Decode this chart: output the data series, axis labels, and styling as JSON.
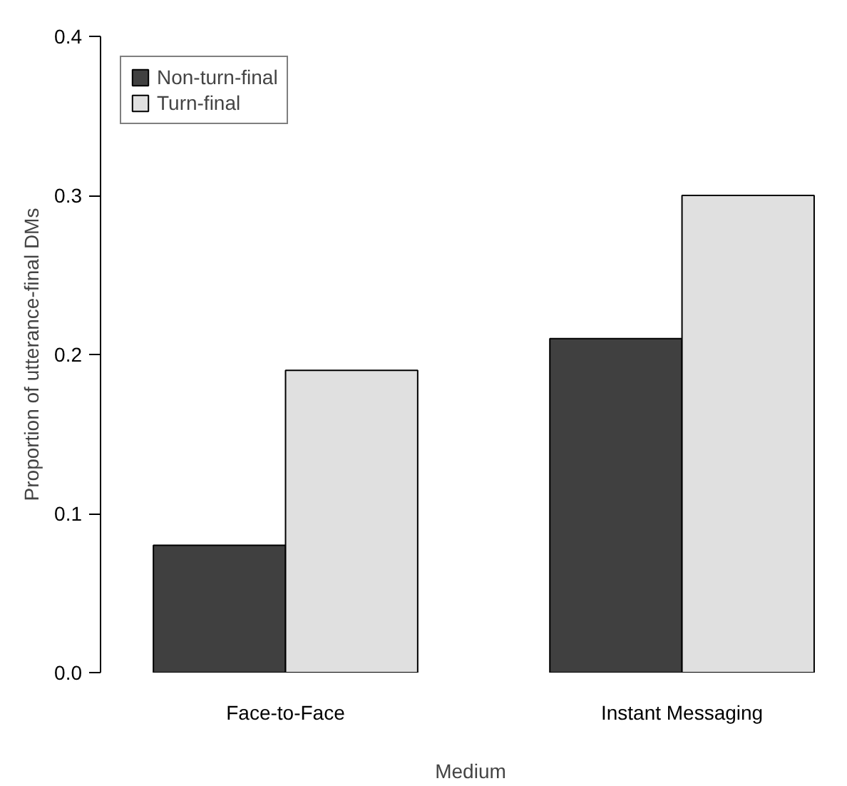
{
  "chart_data": {
    "type": "bar",
    "xlabel": "Medium",
    "ylabel": "Proportion of utterance-final DMs",
    "categories": [
      "Face-to-Face",
      "Instant Messaging"
    ],
    "series": [
      {
        "name": "Non-turn-final",
        "color": "#404040",
        "values": [
          0.08,
          0.21
        ]
      },
      {
        "name": "Turn-final",
        "color": "#e0e0e0",
        "values": [
          0.19,
          0.3
        ]
      }
    ],
    "ylim": [
      0,
      0.4
    ],
    "yticks": [
      {
        "value": 0,
        "label": "0.0"
      },
      {
        "value": 0.1,
        "label": "0.1"
      },
      {
        "value": 0.2,
        "label": "0.2"
      },
      {
        "value": 0.3,
        "label": "0.3"
      },
      {
        "value": 0.4,
        "label": "0.4"
      }
    ],
    "grid": false,
    "legend": "top left"
  }
}
